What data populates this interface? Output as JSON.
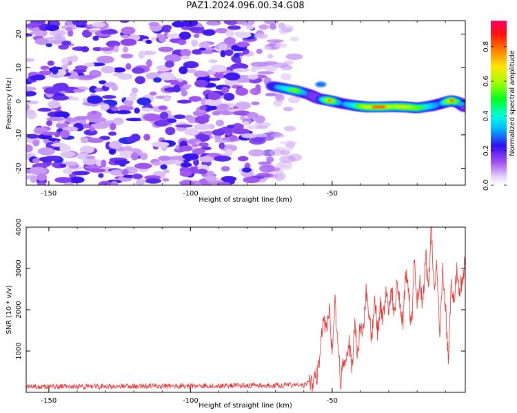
{
  "title": "PAZ1.2024.096.00.34.G08",
  "chart_data": [
    {
      "type": "heatmap",
      "xlabel": "Height of straight line (km)",
      "ylabel": "Frequency (Hz)",
      "xlim": [
        -158,
        -3
      ],
      "ylim": [
        -25,
        24
      ],
      "xticks": [
        -150,
        -100,
        -50
      ],
      "yticks": [
        -20,
        -10,
        0,
        10,
        20
      ],
      "colorbar": {
        "label": "Normalized spectral amplitude",
        "range": [
          0,
          0.95
        ],
        "ticks": [
          0.0,
          0.2,
          0.4,
          0.6,
          0.8
        ]
      },
      "signal_ridge": {
        "x": [
          -71,
          -63,
          -58,
          -55,
          -51,
          -47,
          -42,
          -38,
          -33,
          -28,
          -24,
          -20,
          -15,
          -12,
          -8,
          -5,
          -3
        ],
        "y": [
          4.5,
          3.2,
          2.0,
          0.8,
          0.2,
          -0.6,
          -1.3,
          -1.7,
          -1.7,
          -1.6,
          -1.7,
          -2.0,
          -1.4,
          -0.8,
          0.2,
          -0.5,
          -1.8
        ],
        "amplitude": [
          0.5,
          0.75,
          0.42,
          0.38,
          0.88,
          0.48,
          0.65,
          0.82,
          0.88,
          0.78,
          0.82,
          0.72,
          0.62,
          0.45,
          0.88,
          0.58,
          0.4
        ]
      },
      "noise_level": 0.2,
      "grid": false
    },
    {
      "type": "line",
      "xlabel": "Height of straight line (km)",
      "ylabel": "SNR (10 * v/v)",
      "xlim": [
        -158,
        -3
      ],
      "ylim": [
        0,
        4000
      ],
      "xticks": [
        -150,
        -100,
        -50
      ],
      "yticks": [
        1000,
        2000,
        3000,
        4000
      ],
      "color": "#e8312f",
      "series": [
        {
          "x": [
            -158,
            -60,
            -57,
            -55,
            -54,
            -53,
            -52,
            -51,
            -50,
            -49,
            -48,
            -47,
            -46,
            -45,
            -44,
            -43,
            -42,
            -41,
            -40,
            -39,
            -38,
            -37,
            -36,
            -35,
            -34,
            -33,
            -32,
            -31,
            -30,
            -29,
            -28,
            -27,
            -26,
            -25,
            -24,
            -23,
            -22,
            -21,
            -20,
            -19,
            -18,
            -17,
            -16,
            -15,
            -14,
            -13,
            -12,
            -11,
            -10,
            -9,
            -8,
            -7,
            -6,
            -5,
            -4,
            -3
          ],
          "y": [
            120,
            160,
            260,
            450,
            1300,
            1700,
            1500,
            2100,
            900,
            2200,
            1200,
            300,
            750,
            900,
            1200,
            550,
            1600,
            900,
            1750,
            1450,
            2500,
            1800,
            1300,
            2300,
            1500,
            2100,
            1700,
            2400,
            1900,
            2500,
            1800,
            2700,
            2000,
            1700,
            2900,
            2400,
            1500,
            3200,
            2200,
            2700,
            2100,
            3350,
            2500,
            3950,
            2400,
            3100,
            1200,
            3000,
            2100,
            800,
            2600,
            2300,
            2900,
            2500,
            2700,
            3200
          ]
        }
      ],
      "grid": false
    }
  ]
}
